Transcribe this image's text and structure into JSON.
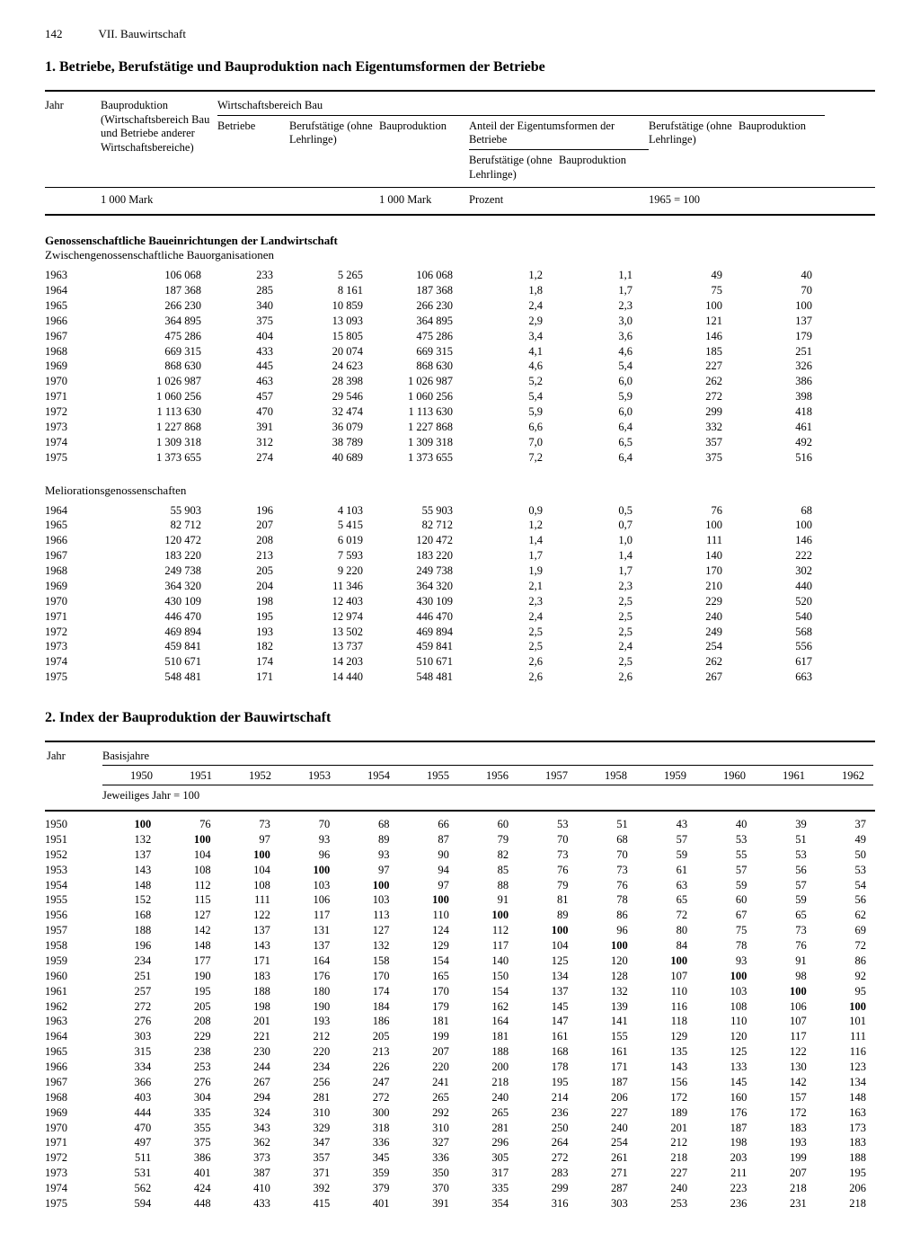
{
  "page": {
    "number": "142",
    "chapter": "VII. Bauwirtschaft"
  },
  "section1": {
    "title": "1. Betriebe, Berufstätige und Bauproduktion nach Eigentumsformen der Betriebe",
    "headers": {
      "jahr": "Jahr",
      "bauprod_total": "Bauproduktion (Wirtschafts­bereich Bau und Betriebe anderer Wirtschafts­bereiche)",
      "wirtschaft": "Wirtschaftsbereich Bau",
      "betriebe": "Betriebe",
      "berufstaetige": "Berufstätige (ohne Lehrlinge)",
      "bauprod": "Bau­produktion",
      "anteil": "Anteil der Eigentumsformen der Betriebe",
      "anteil_beruf": "Berufstätige (ohne Lehrlinge)",
      "anteil_bauprod": "Bau­produktion",
      "idx_beruf": "Berufstätige (ohne Lehrlinge)",
      "idx_bauprod": "Bau­produktion"
    },
    "units": {
      "mark1": "1 000 Mark",
      "mark2": "1 000 Mark",
      "prozent": "Prozent",
      "base": "1965 = 100"
    },
    "groupA": {
      "title_bold": "Genossenschaftliche Baueinrichtungen der Landwirtschaft",
      "title_sub": "Zwischengenossenschaftliche Bauorganisationen",
      "rows": [
        [
          "1963",
          "106 068",
          "233",
          "5 265",
          "106 068",
          "1,2",
          "1,1",
          "49",
          "40"
        ],
        [
          "1964",
          "187 368",
          "285",
          "8 161",
          "187 368",
          "1,8",
          "1,7",
          "75",
          "70"
        ],
        [
          "1965",
          "266 230",
          "340",
          "10 859",
          "266 230",
          "2,4",
          "2,3",
          "100",
          "100"
        ],
        [
          "1966",
          "364 895",
          "375",
          "13 093",
          "364 895",
          "2,9",
          "3,0",
          "121",
          "137"
        ],
        [
          "1967",
          "475 286",
          "404",
          "15 805",
          "475 286",
          "3,4",
          "3,6",
          "146",
          "179"
        ],
        [
          "1968",
          "669 315",
          "433",
          "20 074",
          "669 315",
          "4,1",
          "4,6",
          "185",
          "251"
        ],
        [
          "1969",
          "868 630",
          "445",
          "24 623",
          "868 630",
          "4,6",
          "5,4",
          "227",
          "326"
        ],
        [
          "1970",
          "1 026 987",
          "463",
          "28 398",
          "1 026 987",
          "5,2",
          "6,0",
          "262",
          "386"
        ],
        [
          "1971",
          "1 060 256",
          "457",
          "29 546",
          "1 060 256",
          "5,4",
          "5,9",
          "272",
          "398"
        ],
        [
          "1972",
          "1 113 630",
          "470",
          "32 474",
          "1 113 630",
          "5,9",
          "6,0",
          "299",
          "418"
        ],
        [
          "1973",
          "1 227 868",
          "391",
          "36 079",
          "1 227 868",
          "6,6",
          "6,4",
          "332",
          "461"
        ],
        [
          "1974",
          "1 309 318",
          "312",
          "38 789",
          "1 309 318",
          "7,0",
          "6,5",
          "357",
          "492"
        ],
        [
          "1975",
          "1 373 655",
          "274",
          "40 689",
          "1 373 655",
          "7,2",
          "6,4",
          "375",
          "516"
        ]
      ]
    },
    "groupB": {
      "title": "Meliorationsgenossenschaften",
      "rows": [
        [
          "1964",
          "55 903",
          "196",
          "4 103",
          "55 903",
          "0,9",
          "0,5",
          "76",
          "68"
        ],
        [
          "1965",
          "82 712",
          "207",
          "5 415",
          "82 712",
          "1,2",
          "0,7",
          "100",
          "100"
        ],
        [
          "1966",
          "120 472",
          "208",
          "6 019",
          "120 472",
          "1,4",
          "1,0",
          "111",
          "146"
        ],
        [
          "1967",
          "183 220",
          "213",
          "7 593",
          "183 220",
          "1,7",
          "1,4",
          "140",
          "222"
        ],
        [
          "1968",
          "249 738",
          "205",
          "9 220",
          "249 738",
          "1,9",
          "1,7",
          "170",
          "302"
        ],
        [
          "1969",
          "364 320",
          "204",
          "11 346",
          "364 320",
          "2,1",
          "2,3",
          "210",
          "440"
        ],
        [
          "1970",
          "430 109",
          "198",
          "12 403",
          "430 109",
          "2,3",
          "2,5",
          "229",
          "520"
        ],
        [
          "1971",
          "446 470",
          "195",
          "12 974",
          "446 470",
          "2,4",
          "2,5",
          "240",
          "540"
        ],
        [
          "1972",
          "469 894",
          "193",
          "13 502",
          "469 894",
          "2,5",
          "2,5",
          "249",
          "568"
        ],
        [
          "1973",
          "459 841",
          "182",
          "13 737",
          "459 841",
          "2,5",
          "2,4",
          "254",
          "556"
        ],
        [
          "1974",
          "510 671",
          "174",
          "14 203",
          "510 671",
          "2,6",
          "2,5",
          "262",
          "617"
        ],
        [
          "1975",
          "548 481",
          "171",
          "14 440",
          "548 481",
          "2,6",
          "2,6",
          "267",
          "663"
        ]
      ]
    }
  },
  "section2": {
    "title": "2. Index der Bauproduktion der Bauwirtschaft",
    "headers": {
      "jahr": "Jahr",
      "basis": "Basisjahre",
      "note": "Jeweiliges Jahr = 100",
      "years": [
        "1950",
        "1951",
        "1952",
        "1953",
        "1954",
        "1955",
        "1956",
        "1957",
        "1958",
        "1959",
        "1960",
        "1961",
        "1962"
      ]
    },
    "rows": [
      {
        "y": "1950",
        "v": [
          "100",
          "76",
          "73",
          "70",
          "68",
          "66",
          "60",
          "53",
          "51",
          "43",
          "40",
          "39",
          "37"
        ],
        "b": 0
      },
      {
        "y": "1951",
        "v": [
          "132",
          "100",
          "97",
          "93",
          "89",
          "87",
          "79",
          "70",
          "68",
          "57",
          "53",
          "51",
          "49"
        ],
        "b": 1
      },
      {
        "y": "1952",
        "v": [
          "137",
          "104",
          "100",
          "96",
          "93",
          "90",
          "82",
          "73",
          "70",
          "59",
          "55",
          "53",
          "50"
        ],
        "b": 2
      },
      {
        "y": "1953",
        "v": [
          "143",
          "108",
          "104",
          "100",
          "97",
          "94",
          "85",
          "76",
          "73",
          "61",
          "57",
          "56",
          "53"
        ],
        "b": 3
      },
      {
        "y": "1954",
        "v": [
          "148",
          "112",
          "108",
          "103",
          "100",
          "97",
          "88",
          "79",
          "76",
          "63",
          "59",
          "57",
          "54"
        ],
        "b": 4
      },
      {
        "y": "1955",
        "v": [
          "152",
          "115",
          "111",
          "106",
          "103",
          "100",
          "91",
          "81",
          "78",
          "65",
          "60",
          "59",
          "56"
        ],
        "b": 5
      },
      {
        "y": "1956",
        "v": [
          "168",
          "127",
          "122",
          "117",
          "113",
          "110",
          "100",
          "89",
          "86",
          "72",
          "67",
          "65",
          "62"
        ],
        "b": 6
      },
      {
        "y": "1957",
        "v": [
          "188",
          "142",
          "137",
          "131",
          "127",
          "124",
          "112",
          "100",
          "96",
          "80",
          "75",
          "73",
          "69"
        ],
        "b": 7
      },
      {
        "y": "1958",
        "v": [
          "196",
          "148",
          "143",
          "137",
          "132",
          "129",
          "117",
          "104",
          "100",
          "84",
          "78",
          "76",
          "72"
        ],
        "b": 8
      },
      {
        "y": "1959",
        "v": [
          "234",
          "177",
          "171",
          "164",
          "158",
          "154",
          "140",
          "125",
          "120",
          "100",
          "93",
          "91",
          "86"
        ],
        "b": 9
      },
      {
        "y": "1960",
        "v": [
          "251",
          "190",
          "183",
          "176",
          "170",
          "165",
          "150",
          "134",
          "128",
          "107",
          "100",
          "98",
          "92"
        ],
        "b": 10
      },
      {
        "y": "1961",
        "v": [
          "257",
          "195",
          "188",
          "180",
          "174",
          "170",
          "154",
          "137",
          "132",
          "110",
          "103",
          "100",
          "95"
        ],
        "b": 11
      },
      {
        "y": "1962",
        "v": [
          "272",
          "205",
          "198",
          "190",
          "184",
          "179",
          "162",
          "145",
          "139",
          "116",
          "108",
          "106",
          "100"
        ],
        "b": 12
      },
      {
        "y": "1963",
        "v": [
          "276",
          "208",
          "201",
          "193",
          "186",
          "181",
          "164",
          "147",
          "141",
          "118",
          "110",
          "107",
          "101"
        ],
        "b": -1
      },
      {
        "y": "1964",
        "v": [
          "303",
          "229",
          "221",
          "212",
          "205",
          "199",
          "181",
          "161",
          "155",
          "129",
          "120",
          "117",
          "111"
        ],
        "b": -1
      },
      {
        "y": "1965",
        "v": [
          "315",
          "238",
          "230",
          "220",
          "213",
          "207",
          "188",
          "168",
          "161",
          "135",
          "125",
          "122",
          "116"
        ],
        "b": -1
      },
      {
        "y": "1966",
        "v": [
          "334",
          "253",
          "244",
          "234",
          "226",
          "220",
          "200",
          "178",
          "171",
          "143",
          "133",
          "130",
          "123"
        ],
        "b": -1
      },
      {
        "y": "1967",
        "v": [
          "366",
          "276",
          "267",
          "256",
          "247",
          "241",
          "218",
          "195",
          "187",
          "156",
          "145",
          "142",
          "134"
        ],
        "b": -1
      },
      {
        "y": "1968",
        "v": [
          "403",
          "304",
          "294",
          "281",
          "272",
          "265",
          "240",
          "214",
          "206",
          "172",
          "160",
          "157",
          "148"
        ],
        "b": -1
      },
      {
        "y": "1969",
        "v": [
          "444",
          "335",
          "324",
          "310",
          "300",
          "292",
          "265",
          "236",
          "227",
          "189",
          "176",
          "172",
          "163"
        ],
        "b": -1
      },
      {
        "y": "1970",
        "v": [
          "470",
          "355",
          "343",
          "329",
          "318",
          "310",
          "281",
          "250",
          "240",
          "201",
          "187",
          "183",
          "173"
        ],
        "b": -1
      },
      {
        "y": "1971",
        "v": [
          "497",
          "375",
          "362",
          "347",
          "336",
          "327",
          "296",
          "264",
          "254",
          "212",
          "198",
          "193",
          "183"
        ],
        "b": -1
      },
      {
        "y": "1972",
        "v": [
          "511",
          "386",
          "373",
          "357",
          "345",
          "336",
          "305",
          "272",
          "261",
          "218",
          "203",
          "199",
          "188"
        ],
        "b": -1
      },
      {
        "y": "1973",
        "v": [
          "531",
          "401",
          "387",
          "371",
          "359",
          "350",
          "317",
          "283",
          "271",
          "227",
          "211",
          "207",
          "195"
        ],
        "b": -1
      },
      {
        "y": "1974",
        "v": [
          "562",
          "424",
          "410",
          "392",
          "379",
          "370",
          "335",
          "299",
          "287",
          "240",
          "223",
          "218",
          "206"
        ],
        "b": -1
      },
      {
        "y": "1975",
        "v": [
          "594",
          "448",
          "433",
          "415",
          "401",
          "391",
          "354",
          "316",
          "303",
          "253",
          "236",
          "231",
          "218"
        ],
        "b": -1
      }
    ]
  }
}
